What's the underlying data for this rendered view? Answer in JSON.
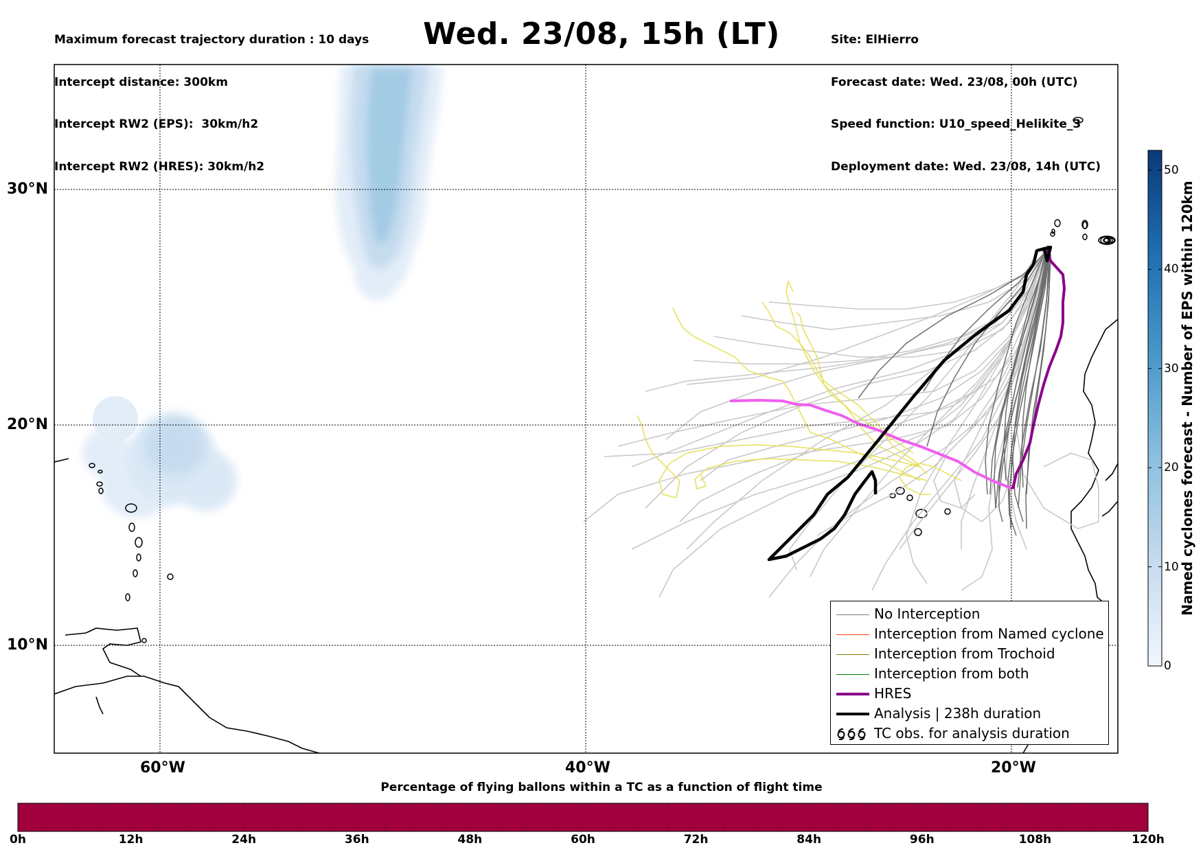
{
  "header": {
    "title": "Wed. 23/08, 15h (LT)",
    "left_lines": [
      "Maximum forecast trajectory duration : 10 days",
      "Intercept distance: 300km",
      "Intercept RW2 (EPS):  30km/h2",
      "Intercept RW2 (HRES): 30km/h2"
    ],
    "right_lines": [
      "Site: ElHierro",
      "Forecast date: Wed. 23/08, 00h (UTC)",
      "Speed function: U10_speed_Helikite_3",
      "Deployment date: Wed. 23/08, 14h (UTC)"
    ]
  },
  "map": {
    "lat_labels": [
      "30°N",
      "20°N",
      "10°N"
    ],
    "lon_labels": [
      "60°W",
      "40°W",
      "20°W"
    ],
    "site_name": "ElHierro"
  },
  "legend": {
    "items": [
      {
        "label": "No Interception",
        "color": "#808080",
        "style": "thin"
      },
      {
        "label": "Interception from Named cyclone",
        "color": "#ff4500",
        "style": "thin"
      },
      {
        "label": "Interception from Trochoid",
        "color": "#808000",
        "style": "thin"
      },
      {
        "label": "Interception from both",
        "color": "#008000",
        "style": "thin"
      },
      {
        "label": "HRES",
        "color": "#8b008b",
        "style": "thick"
      },
      {
        "label": "Analysis | 238h duration",
        "color": "#000000",
        "style": "thick"
      },
      {
        "label": "TC obs. for analysis duration",
        "color": "#000000",
        "style": "symbol",
        "icon": "hurricane-symbol-icon"
      }
    ]
  },
  "colorbar": {
    "label": "Named cyclones forecast - Number of EPS within 120km",
    "ticks": [
      "0",
      "10",
      "20",
      "30",
      "40",
      "50"
    ],
    "range": [
      0,
      52
    ],
    "colormap": "Blues"
  },
  "bottom_bar": {
    "title": "Percentage of flying ballons within a TC as a function of flight time",
    "ticks": [
      "0h",
      "12h",
      "24h",
      "36h",
      "48h",
      "60h",
      "72h",
      "84h",
      "96h",
      "108h",
      "120h"
    ],
    "fill_color": "#a0003c"
  },
  "colors": {
    "eps_trajectory": "#c8c8c8",
    "eps_trajectory_dark": "#6e6e6e",
    "yellow_trajectory": "#e8e060",
    "hres_pink": "#f060f0",
    "hres": "#8b008b",
    "analysis": "#000000"
  }
}
